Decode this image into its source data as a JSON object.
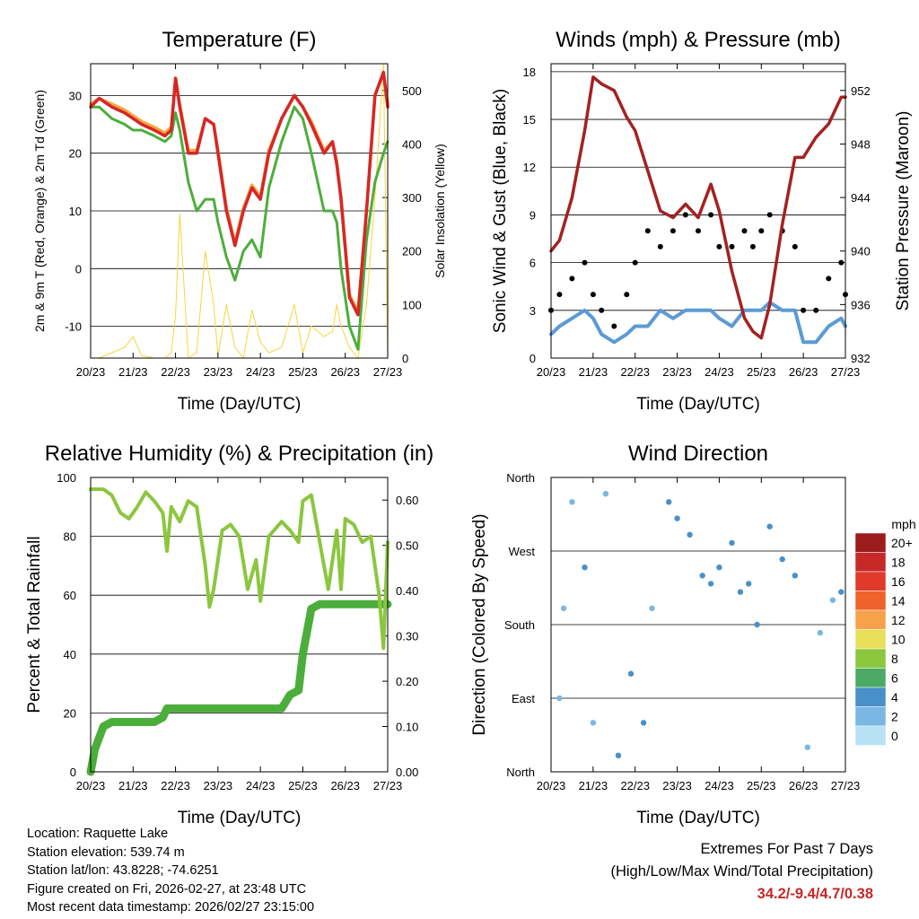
{
  "info": {
    "location": "Location: Raquette Lake",
    "elevation": "Station elevation: 539.74 m",
    "latlon": "Station lat/lon: 43.8228; -74.6251",
    "created": "Figure created on Fri, 2026-02-27, at 23:48 UTC",
    "latest": "Most recent data timestamp: 2026/02/27 23:15:00"
  },
  "extremes": {
    "title": "Extremes For Past 7 Days",
    "subtitle": "(High/Low/Max Wind/Total Precipitation)",
    "values": "34.2/-9.4/4.7/0.38"
  },
  "chart_data": [
    {
      "id": "temperature",
      "type": "line",
      "title": "Temperature (F)",
      "xlabel": "Time (Day/UTC)",
      "ylabel": "2m & 9m T (Red, Orange) & 2m Td (Green)",
      "y2label": "Solar Insolation (Yellow)",
      "x_ticks": [
        "20/23",
        "21/23",
        "22/23",
        "23/23",
        "24/23",
        "25/23",
        "26/23",
        "27/23"
      ],
      "x": [
        0,
        0.2,
        0.5,
        0.8,
        1,
        1.2,
        1.5,
        1.75,
        1.9,
        2.0,
        2.1,
        2.3,
        2.5,
        2.7,
        2.9,
        3.0,
        3.2,
        3.4,
        3.6,
        3.8,
        4.0,
        4.2,
        4.5,
        4.8,
        5.0,
        5.2,
        5.5,
        5.7,
        5.8,
        5.9,
        6.1,
        6.3,
        6.5,
        6.7,
        6.9,
        7.0
      ],
      "ylim": [
        -15.5,
        35.5
      ],
      "y_ticks": [
        30,
        20,
        10,
        0,
        -10
      ],
      "y2lim": [
        0,
        550
      ],
      "y2_ticks": [
        0,
        100,
        200,
        300,
        400,
        500
      ],
      "series": [
        {
          "name": "2m T",
          "color": "#d62728",
          "values": [
            28,
            29.5,
            28,
            27,
            26,
            25,
            24,
            23,
            24,
            33,
            28,
            20,
            20,
            26,
            25,
            20,
            10,
            4,
            10,
            14,
            12,
            20,
            26,
            30,
            28,
            25,
            20,
            22,
            18,
            12,
            -5,
            -8,
            10,
            30,
            34,
            28
          ]
        },
        {
          "name": "9m T",
          "color": "#f4a742",
          "values": [
            28.5,
            29.5,
            28.5,
            27.5,
            26.5,
            25.5,
            24.5,
            23.5,
            24.5,
            33,
            28.5,
            20.5,
            20.5,
            26,
            25,
            20.5,
            10.5,
            4.5,
            10.5,
            14.5,
            12.5,
            20.5,
            26,
            30,
            28,
            25.5,
            20.5,
            22,
            18.5,
            12.5,
            -4.5,
            -7.5,
            10,
            30,
            34,
            28.5
          ]
        },
        {
          "name": "2m Td",
          "color": "#4cae3a",
          "values": [
            28,
            28,
            26,
            25,
            24,
            24,
            23,
            22,
            23,
            27,
            24,
            15,
            10,
            12,
            12,
            8,
            2,
            -2,
            3,
            5,
            2,
            14,
            22,
            28,
            26,
            20,
            10,
            10,
            8,
            0,
            -10,
            -14,
            5,
            15,
            20,
            22
          ]
        },
        {
          "name": "Solar",
          "color": "#f5d53b",
          "values": [
            0,
            0,
            10,
            20,
            40,
            5,
            0,
            0,
            10,
            80,
            270,
            0,
            10,
            200,
            100,
            5,
            100,
            20,
            0,
            90,
            30,
            10,
            20,
            100,
            10,
            60,
            40,
            50,
            100,
            60,
            20,
            0,
            100,
            300,
            550,
            0
          ]
        }
      ]
    },
    {
      "id": "winds",
      "type": "line",
      "title": "Winds (mph) & Pressure (mb)",
      "xlabel": "Time (Day/UTC)",
      "ylabel": "Sonic Wind & Gust (Blue, Black)",
      "y2label": "Station Pressure (Maroon)",
      "x_ticks": [
        "20/23",
        "21/23",
        "22/23",
        "23/23",
        "24/23",
        "25/23",
        "26/23",
        "27/23"
      ],
      "ylim": [
        0,
        18.5
      ],
      "y_ticks": [
        0,
        3,
        6,
        9,
        12,
        15,
        18
      ],
      "y2lim": [
        932,
        954
      ],
      "y2_ticks": [
        932,
        936,
        940,
        944,
        948,
        952
      ],
      "x": [
        0,
        0.2,
        0.5,
        0.8,
        1.0,
        1.2,
        1.5,
        1.8,
        2.0,
        2.3,
        2.6,
        2.9,
        3.2,
        3.5,
        3.8,
        4.0,
        4.3,
        4.6,
        4.8,
        5.0,
        5.2,
        5.5,
        5.8,
        6.0,
        6.3,
        6.6,
        6.9,
        7.0
      ],
      "series": [
        {
          "name": "Sonic Wind",
          "color": "#5b9bd5",
          "values": [
            1.5,
            2,
            2.5,
            3,
            2.5,
            1.5,
            1,
            1.5,
            2,
            2,
            3,
            2.5,
            3,
            3,
            3,
            2.5,
            2,
            3,
            3,
            3,
            3.5,
            3,
            3,
            1,
            1,
            2,
            2.5,
            2
          ]
        },
        {
          "name": "Gust",
          "color": "#000000",
          "values": [
            3,
            4,
            5,
            6,
            4,
            3,
            2,
            4,
            6,
            8,
            7,
            8,
            9,
            8,
            9,
            7,
            7,
            8,
            7,
            8,
            9,
            8,
            7,
            3,
            3,
            5,
            6,
            4
          ]
        },
        {
          "name": "Station Pressure",
          "color": "#a32222",
          "values": [
            940,
            940.8,
            944,
            949,
            953,
            952.5,
            952,
            950,
            949,
            946,
            943,
            942.5,
            943.5,
            942.5,
            945,
            943,
            938.5,
            935,
            934,
            933.5,
            936,
            942,
            947,
            947,
            948.5,
            949.5,
            951.5,
            951.5
          ]
        }
      ]
    },
    {
      "id": "humidity",
      "type": "line",
      "title": "Relative Humidity (%) & Precipitation (in)",
      "xlabel": "Time (Day/UTC)",
      "ylabel": "Percent & Total Rainfall",
      "x_ticks": [
        "20/23",
        "21/23",
        "22/23",
        "23/23",
        "24/23",
        "25/23",
        "26/23",
        "27/23"
      ],
      "ylim": [
        0,
        100
      ],
      "y_ticks": [
        0,
        20,
        40,
        60,
        80,
        100
      ],
      "y2lim": [
        0,
        0.65
      ],
      "y2_ticks": [
        "0.00",
        "0.10",
        "0.20",
        "0.30",
        "0.40",
        "0.50",
        "0.60"
      ],
      "x": [
        0,
        0.1,
        0.3,
        0.5,
        0.7,
        0.9,
        1.1,
        1.3,
        1.5,
        1.7,
        1.8,
        1.9,
        2.1,
        2.3,
        2.5,
        2.7,
        2.8,
        2.9,
        3.1,
        3.3,
        3.5,
        3.7,
        3.9,
        4.0,
        4.2,
        4.5,
        4.7,
        4.9,
        5.0,
        5.2,
        5.4,
        5.6,
        5.8,
        5.9,
        6.0,
        6.2,
        6.4,
        6.6,
        6.8,
        6.9,
        7.0
      ],
      "series": [
        {
          "name": "RH",
          "color": "#8cc63f",
          "values": [
            96,
            96,
            96,
            94,
            88,
            86,
            90,
            95,
            92,
            88,
            75,
            90,
            85,
            92,
            90,
            70,
            56,
            62,
            82,
            84,
            80,
            62,
            72,
            58,
            80,
            85,
            82,
            78,
            92,
            94,
            78,
            62,
            82,
            62,
            86,
            84,
            78,
            80,
            60,
            42,
            78
          ]
        },
        {
          "name": "Precip",
          "color": "#4cae3a",
          "values": [
            0,
            0.05,
            0.1,
            0.11,
            0.11,
            0.11,
            0.11,
            0.11,
            0.11,
            0.12,
            0.14,
            0.14,
            0.14,
            0.14,
            0.14,
            0.14,
            0.14,
            0.14,
            0.14,
            0.14,
            0.14,
            0.14,
            0.14,
            0.14,
            0.14,
            0.14,
            0.17,
            0.18,
            0.26,
            0.36,
            0.37,
            0.37,
            0.37,
            0.37,
            0.37,
            0.37,
            0.37,
            0.37,
            0.37,
            0.37,
            0.37
          ]
        }
      ]
    },
    {
      "id": "direction",
      "type": "scatter",
      "title": "Wind Direction",
      "xlabel": "Time (Day/UTC)",
      "ylabel": "Direction (Colored By Speed)",
      "x_ticks": [
        "20/23",
        "21/23",
        "22/23",
        "23/23",
        "24/23",
        "25/23",
        "26/23",
        "27/23"
      ],
      "y_ticks": [
        "North",
        "West",
        "South",
        "East",
        "North"
      ],
      "legend_title": "mph",
      "legend_labels": [
        "20+",
        "18",
        "16",
        "14",
        "12",
        "10",
        "8",
        "6",
        "4",
        "2",
        "0"
      ],
      "legend_colors": [
        "#9b1c1c",
        "#c62828",
        "#e03a2b",
        "#f0622b",
        "#f7a24a",
        "#e8de5a",
        "#8cc63f",
        "#4caa66",
        "#4a90c8",
        "#7bb7e3",
        "#b8e1f5"
      ],
      "y_range_deg": [
        0,
        360
      ],
      "points": [
        {
          "x": 0.2,
          "deg": 90,
          "speed": 2
        },
        {
          "x": 0.3,
          "deg": 200,
          "speed": 1
        },
        {
          "x": 0.5,
          "deg": 330,
          "speed": 2
        },
        {
          "x": 0.8,
          "deg": 250,
          "speed": 3
        },
        {
          "x": 1.0,
          "deg": 60,
          "speed": 2
        },
        {
          "x": 1.3,
          "deg": 340,
          "speed": 2
        },
        {
          "x": 1.6,
          "deg": 20,
          "speed": 3
        },
        {
          "x": 1.9,
          "deg": 120,
          "speed": 3
        },
        {
          "x": 2.2,
          "deg": 60,
          "speed": 3
        },
        {
          "x": 2.4,
          "deg": 200,
          "speed": 2
        },
        {
          "x": 2.8,
          "deg": 330,
          "speed": 3
        },
        {
          "x": 3.0,
          "deg": 310,
          "speed": 4
        },
        {
          "x": 3.3,
          "deg": 290,
          "speed": 3
        },
        {
          "x": 3.6,
          "deg": 240,
          "speed": 4
        },
        {
          "x": 3.8,
          "deg": 230,
          "speed": 4
        },
        {
          "x": 4.0,
          "deg": 250,
          "speed": 3
        },
        {
          "x": 4.3,
          "deg": 280,
          "speed": 3
        },
        {
          "x": 4.5,
          "deg": 220,
          "speed": 4
        },
        {
          "x": 4.7,
          "deg": 230,
          "speed": 4
        },
        {
          "x": 4.9,
          "deg": 180,
          "speed": 3
        },
        {
          "x": 5.2,
          "deg": 300,
          "speed": 3
        },
        {
          "x": 5.5,
          "deg": 260,
          "speed": 4
        },
        {
          "x": 5.8,
          "deg": 240,
          "speed": 3
        },
        {
          "x": 6.1,
          "deg": 30,
          "speed": 1
        },
        {
          "x": 6.4,
          "deg": 170,
          "speed": 2
        },
        {
          "x": 6.7,
          "deg": 210,
          "speed": 2
        },
        {
          "x": 6.9,
          "deg": 220,
          "speed": 3
        }
      ]
    }
  ]
}
